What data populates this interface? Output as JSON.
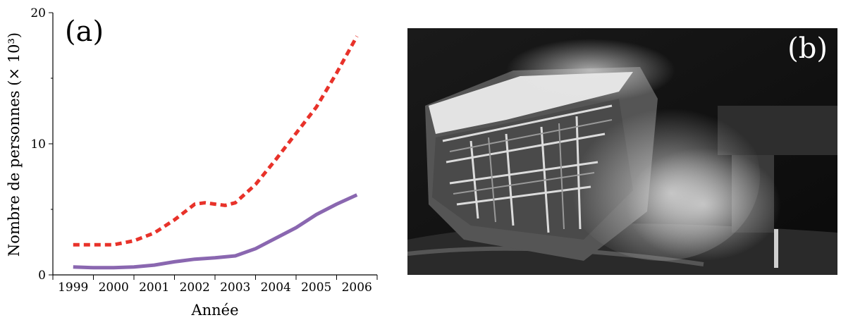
{
  "panel_a_label": "(a)",
  "panel_b_label": "(b)",
  "chart_data": {
    "type": "line",
    "xlabel": "Année",
    "ylabel": "Nombre de personnes (× 10³)",
    "xlim": [
      1998.5,
      2006.5
    ],
    "ylim": [
      0,
      20
    ],
    "x_ticks": [
      "1999",
      "2000",
      "2001",
      "2002",
      "2003",
      "2004",
      "2005",
      "2006"
    ],
    "y_ticks": [
      "0",
      "10",
      "20"
    ],
    "grid": false,
    "legend": false,
    "series": [
      {
        "style": "dashed",
        "color": "#e8322a",
        "x": [
          1999,
          1999.5,
          2000,
          2000.5,
          2001,
          2001.5,
          2002,
          2002.25,
          2002.5,
          2002.75,
          2003,
          2003.5,
          2004,
          2004.5,
          2005,
          2005.5,
          2006
        ],
        "values": [
          2.3,
          2.3,
          2.3,
          2.6,
          3.2,
          4.2,
          5.4,
          5.5,
          5.4,
          5.3,
          5.5,
          6.9,
          8.8,
          10.8,
          12.8,
          15.4,
          18.2
        ]
      },
      {
        "style": "solid",
        "color": "#8a67b0",
        "x": [
          1999,
          1999.5,
          2000,
          2000.5,
          2001,
          2001.5,
          2002,
          2002.5,
          2003,
          2003.5,
          2004,
          2004.5,
          2005,
          2005.5,
          2006
        ],
        "values": [
          0.6,
          0.55,
          0.55,
          0.6,
          0.75,
          1.0,
          1.2,
          1.3,
          1.45,
          2.0,
          2.8,
          3.6,
          4.6,
          5.4,
          6.1
        ]
      }
    ]
  },
  "photo": {
    "description_colors": {
      "dark": "#111111",
      "light": "#d9d9d9"
    }
  }
}
